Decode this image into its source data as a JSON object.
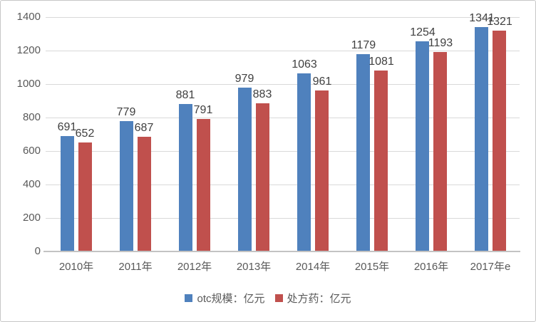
{
  "chart_data": {
    "type": "bar",
    "categories": [
      "2010年",
      "2011年",
      "2012年",
      "2013年",
      "2014年",
      "2015年",
      "2016年",
      "2017年e"
    ],
    "series": [
      {
        "id": "otc",
        "name": "otc规模：亿元",
        "color": "#4F81BD",
        "values": [
          691,
          779,
          881,
          979,
          1063,
          1179,
          1254,
          1341
        ]
      },
      {
        "id": "rx",
        "name": "处方药：亿元",
        "color": "#C0504D",
        "values": [
          652,
          687,
          791,
          883,
          961,
          1081,
          1193,
          1321
        ]
      }
    ],
    "title": "",
    "xlabel": "",
    "ylabel": "",
    "ylim": [
      0,
      1400
    ],
    "yticks": [
      0,
      200,
      400,
      600,
      800,
      1000,
      1200,
      1400
    ],
    "grid": true,
    "data_labels": true,
    "legend_position": "bottom"
  },
  "colors": {
    "grid": "#d9d9d9",
    "axis_line": "#c3c3c3",
    "axis_text": "#595959",
    "data_label_text": "#404040",
    "border": "#c6c6c6",
    "background": "#ffffff"
  }
}
